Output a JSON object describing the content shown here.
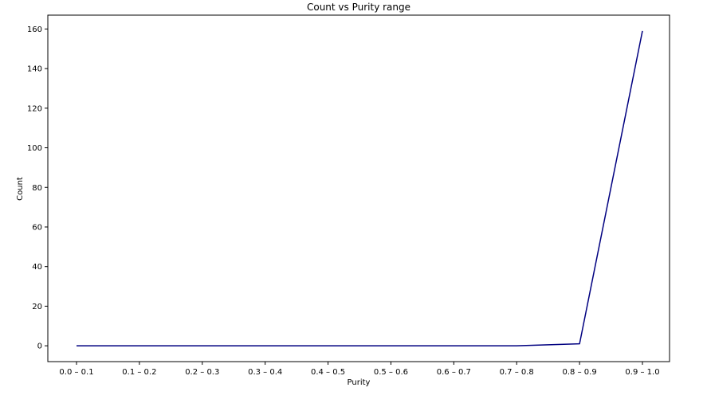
{
  "chart_data": {
    "type": "line",
    "title": "Count vs Purity range",
    "xlabel": "Purity",
    "ylabel": "Count",
    "categories": [
      "0.0 – 0.1",
      "0.1 – 0.2",
      "0.2 – 0.3",
      "0.3 – 0.4",
      "0.4 – 0.5",
      "0.5 – 0.6",
      "0.6 – 0.7",
      "0.7 – 0.8",
      "0.8 – 0.9",
      "0.9 – 1.0"
    ],
    "series": [
      {
        "values": [
          0,
          0,
          0,
          0,
          0,
          0,
          0,
          0,
          1,
          159
        ],
        "color": "#000080"
      }
    ],
    "ylim": [
      -8,
      167
    ],
    "yticks": [
      0,
      20,
      40,
      60,
      80,
      100,
      120,
      140,
      160
    ],
    "grid": false,
    "legend": false
  }
}
